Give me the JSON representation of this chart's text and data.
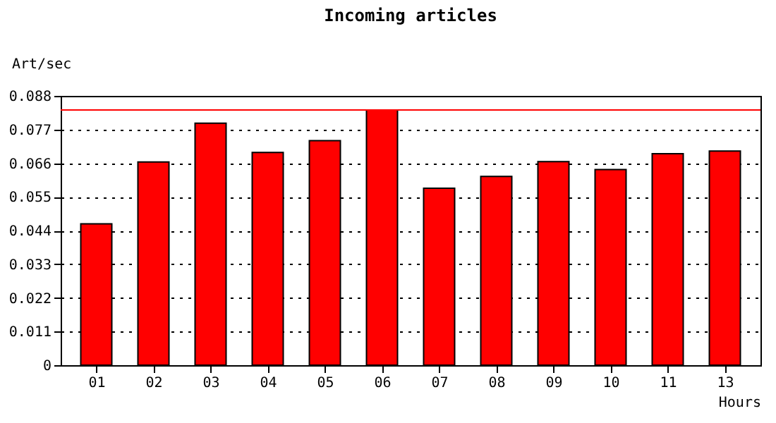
{
  "chart_data": {
    "type": "bar",
    "title": "Incoming articles",
    "xlabel": "Hours",
    "ylabel": "Art/sec",
    "categories": [
      "01",
      "02",
      "03",
      "04",
      "05",
      "06",
      "07",
      "08",
      "09",
      "10",
      "11",
      "13"
    ],
    "values": [
      0.0462,
      0.0664,
      0.0791,
      0.0695,
      0.0734,
      0.0834,
      0.0578,
      0.0617,
      0.0665,
      0.0639,
      0.0691,
      0.07
    ],
    "color": "#ff0000",
    "ylim": [
      0,
      0.088
    ],
    "yticks": [
      0,
      0.011,
      0.022,
      0.033,
      0.044,
      0.055,
      0.066,
      0.077,
      0.088
    ],
    "grid": "y",
    "ref_lines": [
      {
        "axis": "y",
        "value": 0.0834,
        "color": "#ff0000",
        "line_style": "solid"
      }
    ]
  }
}
